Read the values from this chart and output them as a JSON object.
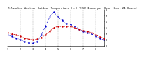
{
  "title": "Milwaukee Weather Outdoor Temperature (vs) THSW Index per Hour (Last 24 Hours)",
  "title_fontsize": 2.8,
  "background_color": "#ffffff",
  "grid_color": "#888888",
  "ylim": [
    20,
    80
  ],
  "y_ticks": [
    20,
    30,
    40,
    50,
    60,
    70,
    80
  ],
  "y_tick_labels": [
    "2",
    "3",
    "4",
    "5",
    "6",
    "7",
    "8"
  ],
  "temp_color": "#cc0000",
  "thsw_color": "#0000cc",
  "temp_values": [
    42,
    40,
    38,
    36,
    33,
    31,
    30,
    31,
    34,
    38,
    44,
    50,
    52,
    52,
    52,
    52,
    50,
    48,
    45,
    44,
    42,
    38,
    35,
    33
  ],
  "thsw_values": [
    38,
    36,
    33,
    30,
    27,
    25,
    24,
    27,
    38,
    52,
    68,
    76,
    68,
    62,
    57,
    55,
    52,
    48,
    44,
    42,
    40,
    36,
    32,
    30
  ],
  "vgrid_positions": [
    0,
    3,
    6,
    9,
    12,
    15,
    18,
    21
  ],
  "xlim": [
    0,
    23
  ],
  "x_ticks": [
    0,
    3,
    6,
    9,
    12,
    15,
    18,
    21
  ],
  "x_tick_labels": [
    "1",
    "2",
    "3",
    "4",
    "5",
    "6",
    "7",
    "8"
  ]
}
